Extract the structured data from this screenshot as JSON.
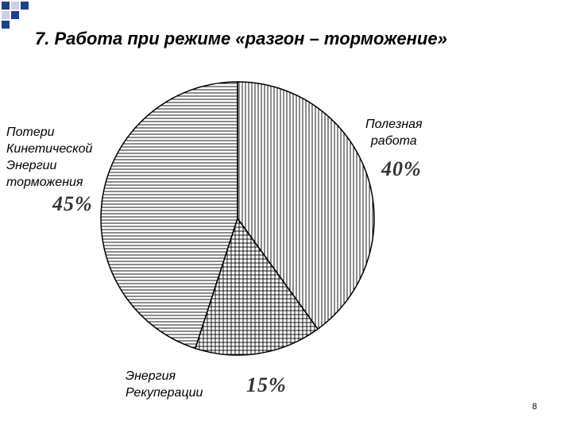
{
  "slide": {
    "title": "7. Работа при режиме «разгон – торможение»",
    "page_number": "8"
  },
  "chart_data": {
    "type": "pie",
    "slices": [
      {
        "label": "Полезная\nработа",
        "value": 40,
        "value_label": "40%",
        "pattern": "vertical"
      },
      {
        "label": "Энергия\nРекуперации",
        "value": 15,
        "value_label": "15%",
        "pattern": "crosshatch"
      },
      {
        "label": "Потери\nКинетической\nЭнергии\nторможения",
        "value": 45,
        "value_label": "45%",
        "pattern": "horizontal"
      }
    ],
    "colors": {
      "fill": "#ffffff",
      "stroke": "#000000"
    }
  }
}
